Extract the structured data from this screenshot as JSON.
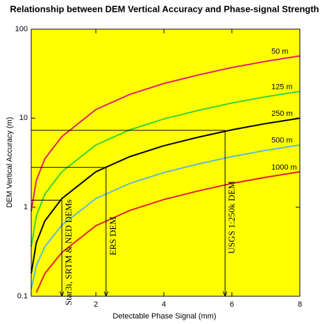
{
  "chart_data": {
    "type": "line",
    "title": "Relationship between DEM Vertical Accuracy and Phase-signal Strength",
    "x_label": "Detectable Phase Signal (mm)",
    "y_label": "DEM Vertical Accuracy (m)",
    "x": [
      0.1,
      0.25,
      0.5,
      1,
      2,
      3,
      4,
      5,
      6,
      7,
      8
    ],
    "series": [
      {
        "name": "50 m",
        "color": "#e0206a",
        "values": [
          0.9,
          2,
          3.5,
          6.2,
          12.5,
          18.5,
          24.5,
          30.5,
          37,
          43.5,
          50
        ]
      },
      {
        "name": "125 m",
        "color": "#3ad23a",
        "values": [
          0.36,
          0.8,
          1.4,
          2.5,
          5,
          7.4,
          9.8,
          12.2,
          14.8,
          17.4,
          20
        ]
      },
      {
        "name": "250 m",
        "color": "#000000",
        "values": [
          0.18,
          0.4,
          0.7,
          1.25,
          2.5,
          3.7,
          4.9,
          6.1,
          7.4,
          8.7,
          10
        ]
      },
      {
        "name": "500 m",
        "color": "#5fb8d8",
        "values": [
          0.12,
          0.22,
          0.36,
          0.63,
          1.25,
          1.85,
          2.45,
          3.05,
          3.7,
          4.35,
          5
        ]
      },
      {
        "name": "1000 m",
        "color": "#e0202a",
        "values": [
          null,
          0.11,
          0.18,
          0.31,
          0.62,
          0.92,
          1.22,
          1.52,
          1.85,
          2.17,
          2.5
        ]
      }
    ],
    "annotations": [
      {
        "label": "Star3i, SRTM & NED DEMs",
        "x": 1,
        "y": 1.2
      },
      {
        "label": "ERS DEM",
        "x": 2.3,
        "y": 2.8
      },
      {
        "label": "USGS 1:250k DEM",
        "x": 5.8,
        "y": 7.3
      }
    ],
    "xlim": [
      0.1,
      8
    ],
    "xticks": [
      2,
      4,
      6,
      8
    ],
    "ylim": [
      0.1,
      100
    ],
    "yticks": [
      0.1,
      1,
      10,
      100
    ],
    "log_y": true,
    "background": "#ffff00"
  }
}
